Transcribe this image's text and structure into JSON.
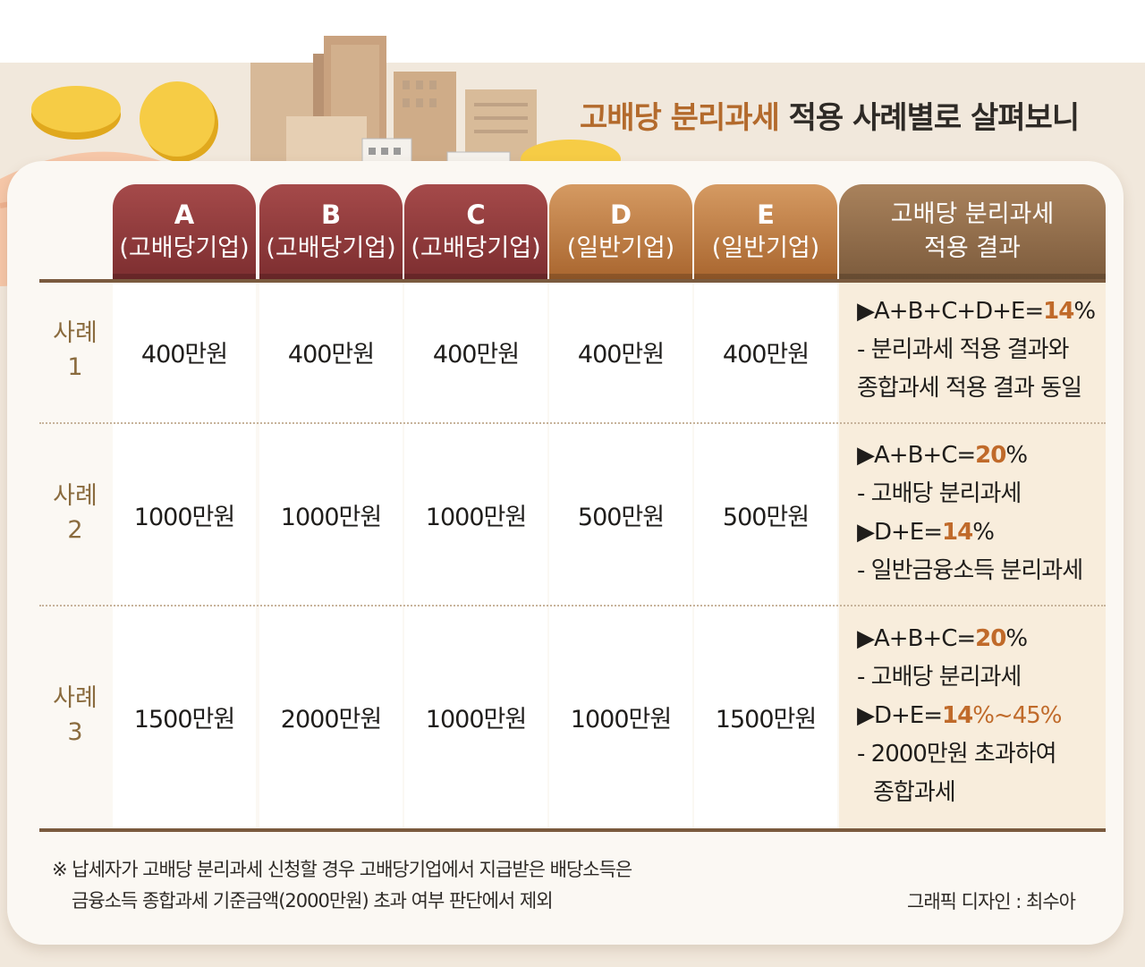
{
  "title": {
    "highlight": "고배당 분리과세",
    "rest": " 적용 사례별로 살펴보니"
  },
  "headers": [
    {
      "letter": "A",
      "sub": "(고배당기업)"
    },
    {
      "letter": "B",
      "sub": "(고배당기업)"
    },
    {
      "letter": "C",
      "sub": "(고배당기업)"
    },
    {
      "letter": "D",
      "sub": "(일반기업)"
    },
    {
      "letter": "E",
      "sub": "(일반기업)"
    }
  ],
  "result_header": {
    "line1": "고배당 분리과세",
    "line2": "적용 결과"
  },
  "rows": [
    {
      "label_1": "사례",
      "label_2": "1",
      "values": [
        "400만원",
        "400만원",
        "400만원",
        "400만원",
        "400만원"
      ],
      "result": [
        {
          "pre": "▶A+B+C+D+E=",
          "pct": "14",
          "post": "%"
        },
        {
          "pre": "- 분리과세 적용 결과와",
          "pct": "",
          "post": ""
        },
        {
          "pre": "종합과세 적용 결과 동일",
          "pct": "",
          "post": ""
        }
      ]
    },
    {
      "label_1": "사례",
      "label_2": "2",
      "values": [
        "1000만원",
        "1000만원",
        "1000만원",
        "500만원",
        "500만원"
      ],
      "result": [
        {
          "pre": "▶A+B+C=",
          "pct": "20",
          "post": "%"
        },
        {
          "pre": "- 고배당 분리과세",
          "pct": "",
          "post": ""
        },
        {
          "pre": "▶D+E=",
          "pct": "14",
          "post": "%"
        },
        {
          "pre": "- 일반금융소득 분리과세",
          "pct": "",
          "post": ""
        }
      ]
    },
    {
      "label_1": "사례",
      "label_2": "3",
      "values": [
        "1500만원",
        "2000만원",
        "1000만원",
        "1000만원",
        "1500만원"
      ],
      "result": [
        {
          "pre": "▶A+B+C=",
          "pct": "20",
          "post": "%"
        },
        {
          "pre": "- 고배당 분리과세",
          "pct": "",
          "post": ""
        },
        {
          "pre": "▶D+E=",
          "pct": "14",
          "post": "%~45%"
        },
        {
          "pre": "- 2000만원 초과하여",
          "pct": "",
          "post": ""
        },
        {
          "pre": "  종합과세",
          "pct": "",
          "post": ""
        }
      ]
    }
  ],
  "footnote": {
    "line1": "※ 납세자가 고배당 분리과세 신청할 경우 고배당기업에서 지급받은 배당소득은",
    "line2": "금융소득 종합과세 기준금액(2000만원) 초과 여부 판단에서 제외"
  },
  "credit": "그래픽 디자인 : 최수아",
  "colors": {
    "accent": "#c06a2a",
    "header_red": "#8e3a3b",
    "header_orange": "#c07d44",
    "header_brown": "#8f6c4a"
  },
  "illustration_icons": [
    "hand-icon",
    "gold-coin-icon",
    "city-buildings-icon",
    "stock-candle-icon"
  ]
}
